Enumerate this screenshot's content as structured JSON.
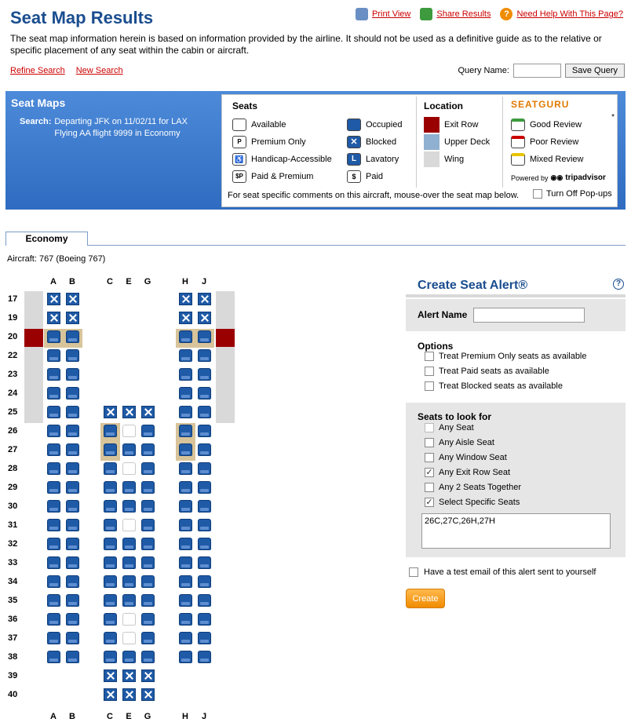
{
  "page": {
    "title": "Seat Map Results"
  },
  "toplinks": {
    "print": "Print View",
    "share": "Share Results",
    "help": "Need Help With This Page?"
  },
  "intro": "The seat map information herein is based on information provided by the airline. It should not be used as a definitive guide as to the relative or specific placement of any seat within the cabin or aircraft.",
  "links": {
    "refine": "Refine Search",
    "new_search": "New Search"
  },
  "query": {
    "label": "Query Name:",
    "value": "",
    "button": "Save Query"
  },
  "seatmaps": {
    "heading": "Seat Maps",
    "search_label": "Search:",
    "search_line1": "Departing JFK on 11/02/11 for LAX",
    "search_line2": "Flying AA flight 9999 in Economy"
  },
  "legend": {
    "seats_heading": "Seats",
    "location_heading": "Location",
    "seatguru": "SEATGURU",
    "seats": [
      "Available",
      "Premium Only",
      "Handicap-Accessible",
      "Paid & Premium",
      "Occupied",
      "Blocked",
      "Lavatory",
      "Paid"
    ],
    "location": [
      "Exit Row",
      "Upper Deck",
      "Wing"
    ],
    "reviews": [
      "Good Review",
      "Poor Review",
      "Mixed Review"
    ],
    "powered": "Powered by",
    "tripadvisor": "tripadvisor",
    "asterisk": "*",
    "footer": "For seat specific comments on this aircraft, mouse-over the seat map below.",
    "popups": "Turn Off Pop-ups",
    "colors": {
      "exit_row": "#9b0000",
      "upper_deck": "#8fb0d0",
      "wing": "#d9d9d9"
    }
  },
  "tab": {
    "label": "Economy"
  },
  "aircraft": "Aircraft: 767 (Boeing 767)",
  "seatmap": {
    "columns": [
      "A",
      "B",
      "C",
      "E",
      "G",
      "H",
      "J"
    ],
    "rows": [
      "17",
      "19",
      "20",
      "22",
      "23",
      "24",
      "25",
      "26",
      "27",
      "28",
      "29",
      "30",
      "31",
      "32",
      "33",
      "34",
      "35",
      "36",
      "37",
      "38",
      "39",
      "40"
    ],
    "exit_rows": [
      "20"
    ],
    "wing_rows": [
      "17",
      "19",
      "20",
      "22",
      "23",
      "24",
      "25"
    ],
    "highlighted": [
      [
        "20",
        "A"
      ],
      [
        "20",
        "B"
      ],
      [
        "20",
        "H"
      ],
      [
        "20",
        "J"
      ],
      [
        "26",
        "C"
      ],
      [
        "27",
        "C"
      ],
      [
        "26",
        "H"
      ],
      [
        "27",
        "H"
      ]
    ],
    "seats": {
      "17": {
        "A": "blocked",
        "B": "blocked",
        "H": "blocked",
        "J": "blocked"
      },
      "19": {
        "A": "blocked",
        "B": "blocked",
        "H": "blocked",
        "J": "blocked"
      },
      "20": {
        "A": "occupied",
        "B": "occupied",
        "H": "occupied",
        "J": "occupied"
      },
      "22": {
        "A": "occupied",
        "B": "occupied",
        "H": "occupied",
        "J": "occupied"
      },
      "23": {
        "A": "occupied",
        "B": "occupied",
        "H": "occupied",
        "J": "occupied"
      },
      "24": {
        "A": "occupied",
        "B": "occupied",
        "H": "occupied",
        "J": "occupied"
      },
      "25": {
        "A": "occupied",
        "B": "occupied",
        "C": "blocked",
        "E": "blocked",
        "G": "blocked",
        "H": "occupied",
        "J": "occupied"
      },
      "26": {
        "A": "occupied",
        "B": "occupied",
        "C": "occupied",
        "E": "available",
        "G": "occupied",
        "H": "occupied",
        "J": "occupied"
      },
      "27": {
        "A": "occupied",
        "B": "occupied",
        "C": "occupied",
        "E": "occupied",
        "G": "occupied",
        "H": "occupied",
        "J": "occupied"
      },
      "28": {
        "A": "occupied",
        "B": "occupied",
        "C": "occupied",
        "E": "available",
        "G": "occupied",
        "H": "occupied",
        "J": "occupied"
      },
      "29": {
        "A": "occupied",
        "B": "occupied",
        "C": "occupied",
        "E": "occupied",
        "G": "occupied",
        "H": "occupied",
        "J": "occupied"
      },
      "30": {
        "A": "occupied",
        "B": "occupied",
        "C": "occupied",
        "E": "occupied",
        "G": "occupied",
        "H": "occupied",
        "J": "occupied"
      },
      "31": {
        "A": "occupied",
        "B": "occupied",
        "C": "occupied",
        "E": "available",
        "G": "occupied",
        "H": "occupied",
        "J": "occupied"
      },
      "32": {
        "A": "occupied",
        "B": "occupied",
        "C": "occupied",
        "E": "occupied",
        "G": "occupied",
        "H": "occupied",
        "J": "occupied"
      },
      "33": {
        "A": "occupied",
        "B": "occupied",
        "C": "occupied",
        "E": "occupied",
        "G": "occupied",
        "H": "occupied",
        "J": "occupied"
      },
      "34": {
        "A": "occupied",
        "B": "occupied",
        "C": "occupied",
        "E": "occupied",
        "G": "occupied",
        "H": "occupied",
        "J": "occupied"
      },
      "35": {
        "A": "occupied",
        "B": "occupied",
        "C": "occupied",
        "E": "occupied",
        "G": "occupied",
        "H": "occupied",
        "J": "occupied"
      },
      "36": {
        "A": "occupied",
        "B": "occupied",
        "C": "occupied",
        "E": "available",
        "G": "occupied",
        "H": "occupied",
        "J": "occupied"
      },
      "37": {
        "A": "occupied",
        "B": "occupied",
        "C": "occupied",
        "E": "available",
        "G": "occupied",
        "H": "occupied",
        "J": "occupied"
      },
      "38": {
        "A": "occupied",
        "B": "occupied",
        "C": "occupied",
        "E": "occupied",
        "G": "occupied",
        "H": "occupied",
        "J": "occupied"
      },
      "39": {
        "C": "blocked",
        "E": "blocked",
        "G": "blocked"
      },
      "40": {
        "C": "blocked",
        "E": "blocked",
        "G": "blocked"
      }
    }
  },
  "alert": {
    "title": "Create Seat Alert®",
    "help": "?",
    "name_label": "Alert Name",
    "name_value": "",
    "options_heading": "Options",
    "options": [
      {
        "label": "Treat Premium Only seats as available",
        "checked": false
      },
      {
        "label": "Treat Paid seats as available",
        "checked": false
      },
      {
        "label": "Treat Blocked seats as available",
        "checked": false
      }
    ],
    "look_heading": "Seats to look for",
    "look": [
      {
        "label": "Any Seat",
        "checked": false
      },
      {
        "label": "Any Aisle Seat",
        "checked": false
      },
      {
        "label": "Any Window Seat",
        "checked": false
      },
      {
        "label": "Any Exit Row Seat",
        "checked": true
      },
      {
        "label": "Any 2 Seats Together",
        "checked": false
      },
      {
        "label": "Select Specific Seats",
        "checked": true
      }
    ],
    "specific_seats": "26C,27C,26H,27H",
    "test_email": "Have a test email of this alert sent to yourself",
    "create": "Create"
  }
}
